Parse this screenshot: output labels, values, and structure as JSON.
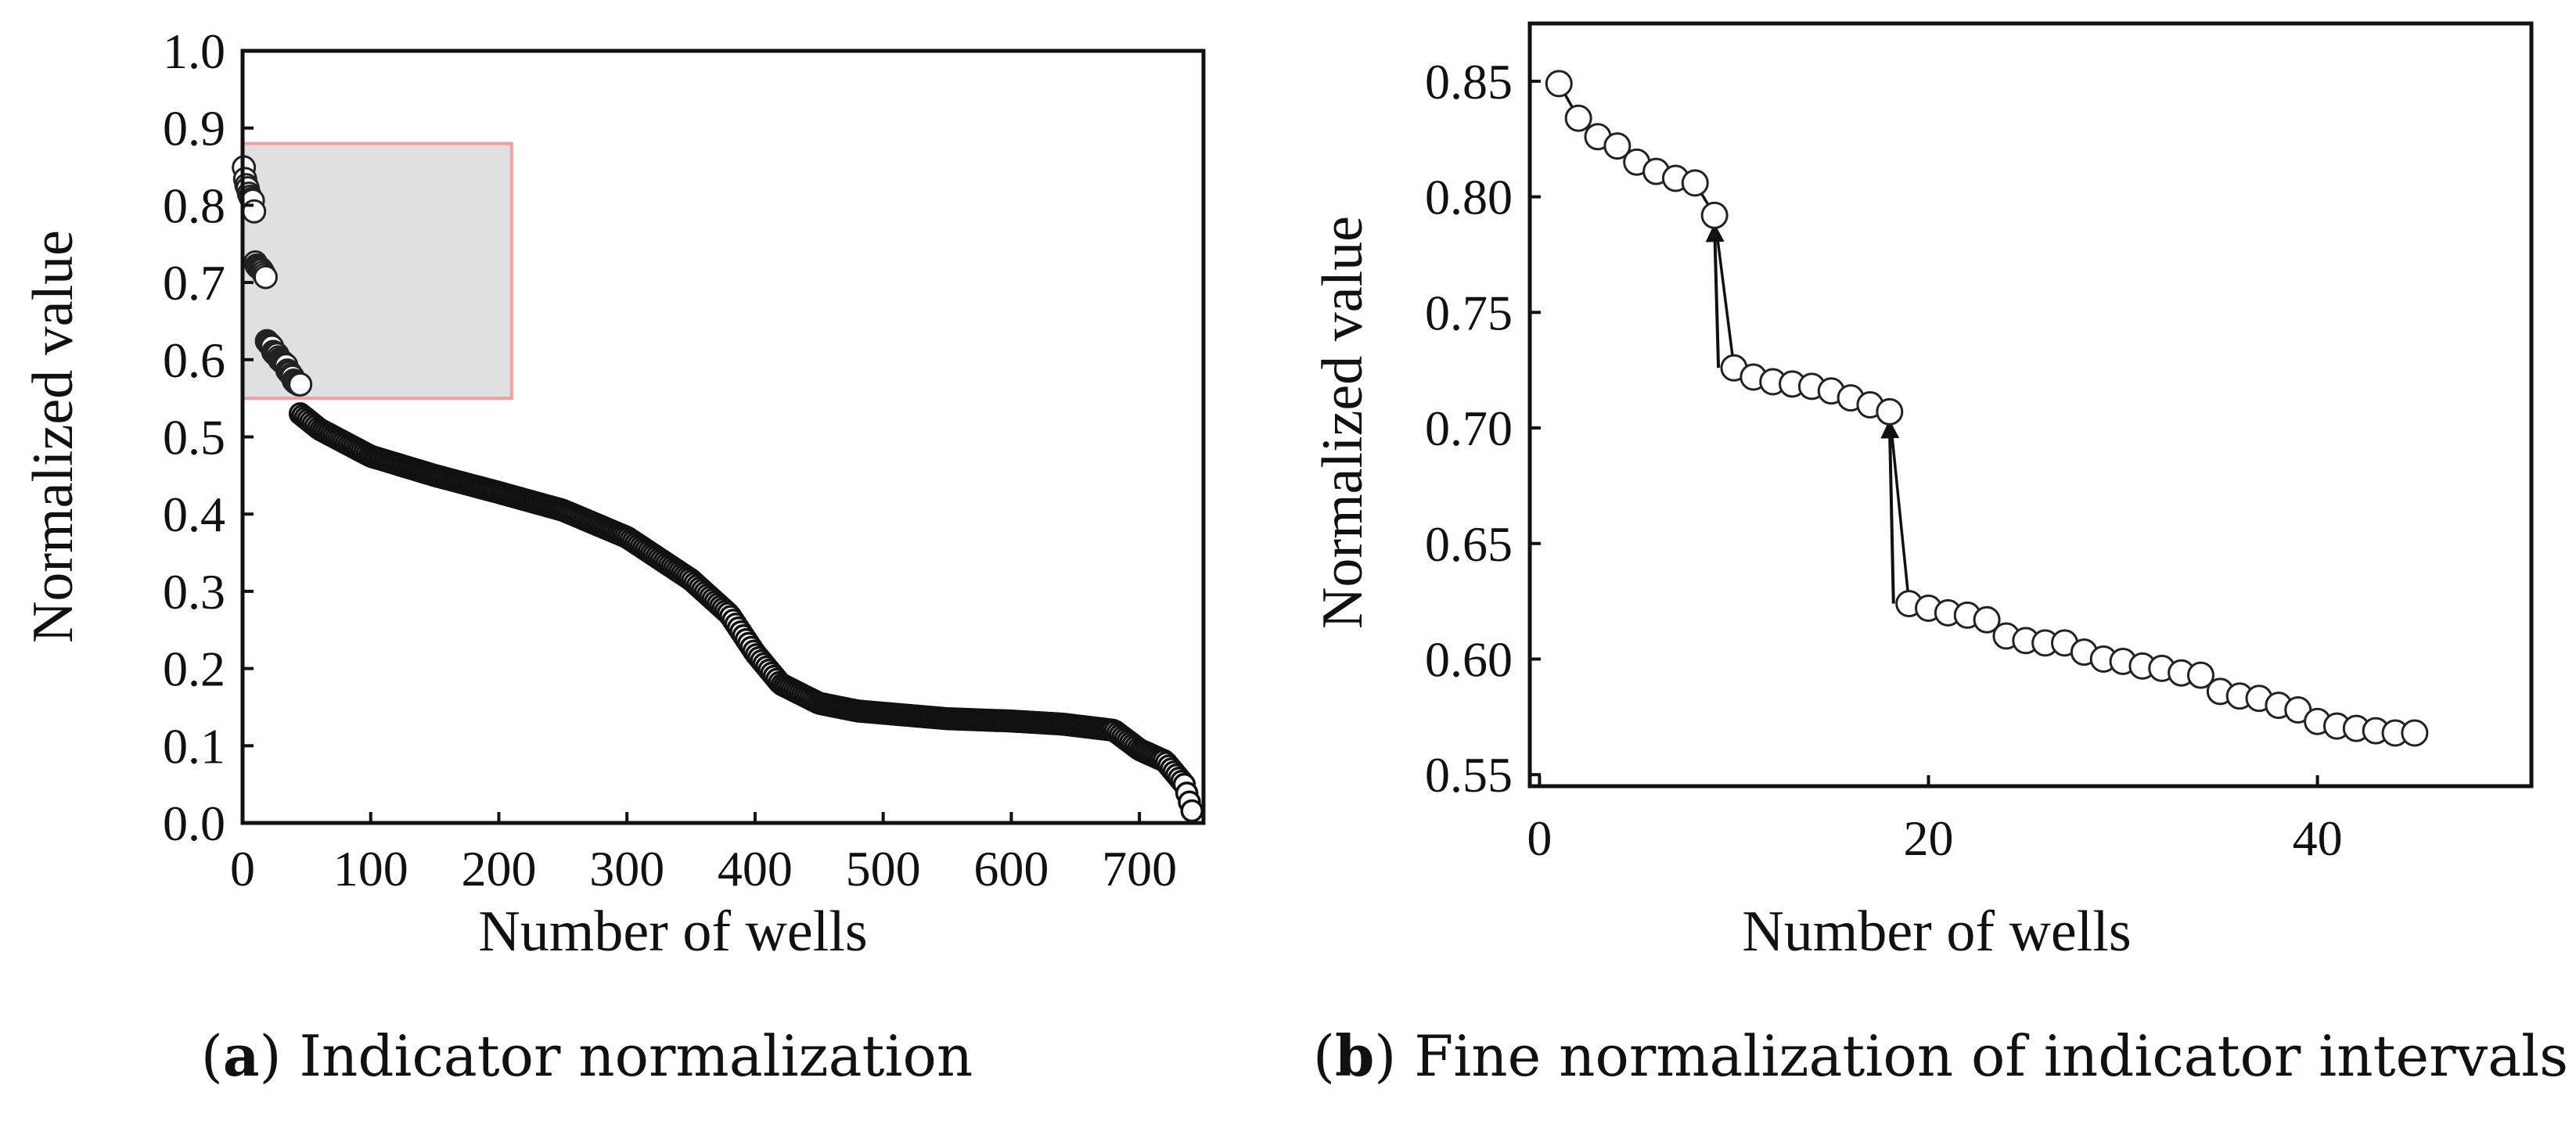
{
  "chart_data": [
    {
      "id": "a",
      "type": "scatter",
      "xlabel": "Number of wells",
      "ylabel": "Normalized value",
      "xlim": [
        0,
        750
      ],
      "ylim": [
        0,
        1.0
      ],
      "xticks": [
        0,
        100,
        200,
        300,
        400,
        500,
        600,
        700
      ],
      "yticks": [
        0.0,
        0.1,
        0.2,
        0.3,
        0.4,
        0.5,
        0.6,
        0.7,
        0.8,
        0.9,
        1.0
      ],
      "ytick_labels": [
        "0.0",
        "0.1",
        "0.2",
        "0.3",
        "0.4",
        "0.5",
        "0.6",
        "0.7",
        "0.8",
        "0.9",
        "1.0"
      ],
      "highlight_region": {
        "x": [
          0,
          210
        ],
        "y": [
          0.55,
          0.88
        ],
        "color": "#e0e0e0",
        "edge": "#f0a0a0"
      },
      "curve_knots": [
        [
          45,
          0.53
        ],
        [
          60,
          0.51
        ],
        [
          100,
          0.475
        ],
        [
          150,
          0.45
        ],
        [
          200,
          0.428
        ],
        [
          250,
          0.405
        ],
        [
          300,
          0.37
        ],
        [
          350,
          0.315
        ],
        [
          380,
          0.27
        ],
        [
          400,
          0.22
        ],
        [
          420,
          0.18
        ],
        [
          450,
          0.155
        ],
        [
          480,
          0.145
        ],
        [
          550,
          0.135
        ],
        [
          600,
          0.132
        ],
        [
          640,
          0.128
        ],
        [
          680,
          0.12
        ],
        [
          700,
          0.095
        ],
        [
          720,
          0.08
        ],
        [
          735,
          0.05
        ],
        [
          742,
          0.01
        ]
      ],
      "caption_label": "a",
      "caption_text": "Indicator normalization"
    },
    {
      "id": "b",
      "type": "line",
      "xlabel": "Number of wells",
      "ylabel": "Normalized value",
      "xlim": [
        -0.5,
        51
      ],
      "ylim": [
        0.545,
        0.875
      ],
      "xticks": [
        0,
        20,
        40
      ],
      "yticks": [
        0.55,
        0.6,
        0.65,
        0.7,
        0.75,
        0.8,
        0.85
      ],
      "ytick_labels": [
        "0.55",
        "0.60",
        "0.65",
        "0.70",
        "0.75",
        "0.80",
        "0.85"
      ],
      "x": [
        1,
        2,
        3,
        4,
        5,
        6,
        7,
        8,
        9,
        10,
        11,
        12,
        13,
        14,
        15,
        16,
        17,
        18,
        19,
        20,
        21,
        22,
        23,
        24,
        25,
        26,
        27,
        28,
        29,
        30,
        31,
        32,
        33,
        34,
        35,
        36,
        37,
        38,
        39,
        40,
        41,
        42,
        43,
        44,
        45
      ],
      "y": [
        0.849,
        0.834,
        0.826,
        0.822,
        0.815,
        0.811,
        0.808,
        0.806,
        0.792,
        0.726,
        0.722,
        0.72,
        0.719,
        0.718,
        0.716,
        0.713,
        0.71,
        0.707,
        0.624,
        0.622,
        0.62,
        0.619,
        0.617,
        0.61,
        0.608,
        0.607,
        0.607,
        0.603,
        0.6,
        0.599,
        0.597,
        0.596,
        0.594,
        0.593,
        0.586,
        0.584,
        0.583,
        0.58,
        0.578,
        0.573,
        0.571,
        0.57,
        0.569,
        0.568,
        0.568
      ],
      "arrows": [
        {
          "from": [
            9.2,
            0.726
          ],
          "to": [
            9.0,
            0.787
          ]
        },
        {
          "from": [
            18.2,
            0.624
          ],
          "to": [
            18.0,
            0.702
          ]
        }
      ],
      "caption_label": "b",
      "caption_text": "Fine normalization of indicator intervals"
    }
  ]
}
